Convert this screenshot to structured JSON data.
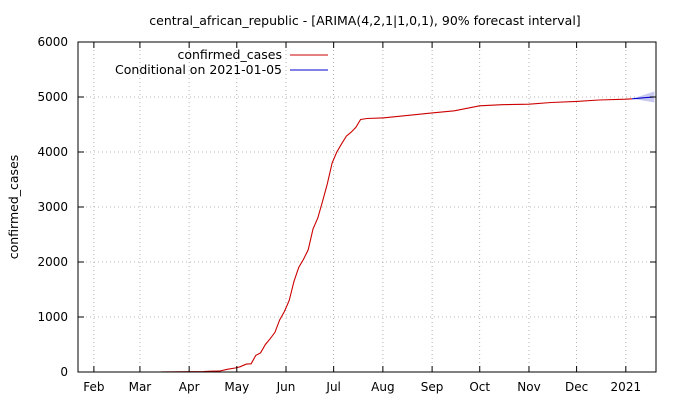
{
  "chart_data": {
    "type": "line",
    "title": "central_african_republic -  [ARIMA(4,2,1|1,0,1), 90% forecast interval]",
    "xlabel": "",
    "ylabel": "confirmed_cases",
    "x_ticks": [
      "Feb",
      "Mar",
      "Apr",
      "May",
      "Jun",
      "Jul",
      "Aug",
      "Sep",
      "Oct",
      "Nov",
      "Dec",
      "2021"
    ],
    "x_tick_dates": [
      "2020-02-01",
      "2020-03-01",
      "2020-04-01",
      "2020-05-01",
      "2020-06-01",
      "2020-07-01",
      "2020-08-01",
      "2020-09-01",
      "2020-10-01",
      "2020-11-01",
      "2020-12-01",
      "2021-01-01"
    ],
    "xlim": [
      "2020-01-22",
      "2021-01-20"
    ],
    "ylim": [
      0,
      6000
    ],
    "y_ticks": [
      0,
      1000,
      2000,
      3000,
      4000,
      5000,
      6000
    ],
    "grid": true,
    "legend_position": "top-left",
    "series": [
      {
        "name": "confirmed_cases",
        "color": "#cc0000",
        "points": [
          [
            "2020-01-22",
            0
          ],
          [
            "2020-03-14",
            0
          ],
          [
            "2020-03-15",
            1
          ],
          [
            "2020-04-10",
            8
          ],
          [
            "2020-04-15",
            14
          ],
          [
            "2020-04-20",
            16
          ],
          [
            "2020-04-25",
            50
          ],
          [
            "2020-04-30",
            72
          ],
          [
            "2020-05-03",
            94
          ],
          [
            "2020-05-07",
            143
          ],
          [
            "2020-05-10",
            150
          ],
          [
            "2020-05-13",
            301
          ],
          [
            "2020-05-16",
            350
          ],
          [
            "2020-05-19",
            500
          ],
          [
            "2020-05-22",
            604
          ],
          [
            "2020-05-25",
            720
          ],
          [
            "2020-05-28",
            950
          ],
          [
            "2020-05-31",
            1100
          ],
          [
            "2020-06-03",
            1300
          ],
          [
            "2020-06-06",
            1650
          ],
          [
            "2020-06-09",
            1900
          ],
          [
            "2020-06-12",
            2050
          ],
          [
            "2020-06-15",
            2222
          ],
          [
            "2020-06-18",
            2600
          ],
          [
            "2020-06-21",
            2800
          ],
          [
            "2020-06-24",
            3100
          ],
          [
            "2020-06-27",
            3420
          ],
          [
            "2020-06-30",
            3800
          ],
          [
            "2020-07-03",
            4000
          ],
          [
            "2020-07-06",
            4150
          ],
          [
            "2020-07-09",
            4290
          ],
          [
            "2020-07-12",
            4360
          ],
          [
            "2020-07-15",
            4450
          ],
          [
            "2020-07-18",
            4590
          ],
          [
            "2020-07-22",
            4610
          ],
          [
            "2020-08-01",
            4620
          ],
          [
            "2020-08-15",
            4660
          ],
          [
            "2020-09-01",
            4710
          ],
          [
            "2020-09-15",
            4750
          ],
          [
            "2020-10-01",
            4840
          ],
          [
            "2020-10-15",
            4860
          ],
          [
            "2020-11-01",
            4870
          ],
          [
            "2020-11-15",
            4900
          ],
          [
            "2020-12-01",
            4920
          ],
          [
            "2020-12-15",
            4945
          ],
          [
            "2021-01-01",
            4960
          ],
          [
            "2021-01-05",
            4968
          ]
        ]
      },
      {
        "name": "Conditional on 2021-01-05",
        "color": "#0000cc",
        "band_color": "#c8c8f0",
        "points": [
          [
            "2021-01-05",
            4968
          ],
          [
            "2021-01-08",
            4975
          ],
          [
            "2021-01-11",
            4983
          ],
          [
            "2021-01-14",
            4990
          ],
          [
            "2021-01-17",
            4996
          ],
          [
            "2021-01-19",
            5000
          ]
        ],
        "lower": [
          4968,
          4955,
          4940,
          4925,
          4910,
          4900
        ],
        "upper": [
          4968,
          4995,
          5025,
          5055,
          5082,
          5100
        ]
      }
    ]
  }
}
